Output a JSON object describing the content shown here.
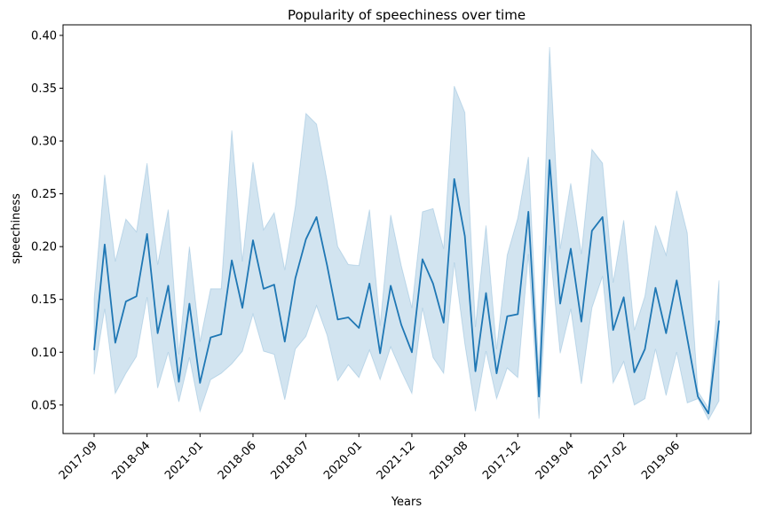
{
  "chart_data": {
    "type": "line",
    "title": "Popularity of speechiness over time",
    "xlabel": "Years",
    "ylabel": "speechiness",
    "x_tick_labels": [
      "2017-09",
      "2018-04",
      "2021-01",
      "2018-06",
      "2018-07",
      "2020-01",
      "2021-12",
      "2019-08",
      "2017-12",
      "2019-04",
      "2017-02",
      "2019-06"
    ],
    "y_ticks": [
      0.05,
      0.1,
      0.15,
      0.2,
      0.25,
      0.3,
      0.35,
      0.4
    ],
    "y_tick_labels": [
      "0.05",
      "0.10",
      "0.15",
      "0.20",
      "0.25",
      "0.30",
      "0.35",
      "0.40"
    ],
    "ylim": [
      0.023,
      0.41
    ],
    "grid": false,
    "colors": {
      "line": "#1f77b4",
      "band": "#1f77b4"
    },
    "series": [
      {
        "mean": [
          0.102,
          0.202,
          0.109,
          0.148,
          0.153,
          0.212,
          0.118,
          0.163,
          0.072,
          0.146,
          0.071,
          0.114,
          0.117,
          0.187,
          0.142,
          0.206,
          0.16,
          0.164,
          0.11,
          0.17,
          0.207,
          0.228,
          0.182,
          0.131,
          0.133,
          0.123,
          0.165,
          0.099,
          0.163,
          0.126,
          0.1,
          0.188,
          0.165,
          0.128,
          0.264,
          0.21,
          0.082,
          0.156,
          0.08,
          0.134,
          0.136,
          0.233,
          0.058,
          0.282,
          0.146,
          0.198,
          0.129,
          0.215,
          0.228,
          0.121,
          0.152,
          0.081,
          0.103,
          0.161,
          0.118,
          0.168,
          0.113,
          0.058,
          0.042,
          0.13
        ],
        "upper": [
          0.15,
          0.268,
          0.186,
          0.226,
          0.214,
          0.279,
          0.183,
          0.235,
          0.098,
          0.2,
          0.11,
          0.16,
          0.16,
          0.31,
          0.186,
          0.28,
          0.216,
          0.232,
          0.178,
          0.238,
          0.326,
          0.316,
          0.262,
          0.2,
          0.183,
          0.182,
          0.235,
          0.125,
          0.23,
          0.182,
          0.142,
          0.233,
          0.236,
          0.198,
          0.352,
          0.327,
          0.124,
          0.22,
          0.103,
          0.192,
          0.227,
          0.285,
          0.08,
          0.389,
          0.198,
          0.26,
          0.193,
          0.292,
          0.279,
          0.166,
          0.225,
          0.121,
          0.153,
          0.22,
          0.192,
          0.253,
          0.213,
          0.063,
          0.047,
          0.168
        ],
        "lower": [
          0.079,
          0.141,
          0.061,
          0.08,
          0.096,
          0.152,
          0.066,
          0.1,
          0.053,
          0.095,
          0.044,
          0.074,
          0.08,
          0.089,
          0.101,
          0.136,
          0.101,
          0.098,
          0.055,
          0.103,
          0.115,
          0.144,
          0.116,
          0.073,
          0.088,
          0.076,
          0.102,
          0.074,
          0.105,
          0.082,
          0.061,
          0.142,
          0.095,
          0.08,
          0.185,
          0.108,
          0.044,
          0.101,
          0.056,
          0.085,
          0.076,
          0.193,
          0.037,
          0.201,
          0.099,
          0.141,
          0.07,
          0.142,
          0.172,
          0.071,
          0.091,
          0.05,
          0.056,
          0.103,
          0.059,
          0.1,
          0.052,
          0.056,
          0.036,
          0.054
        ]
      }
    ]
  }
}
